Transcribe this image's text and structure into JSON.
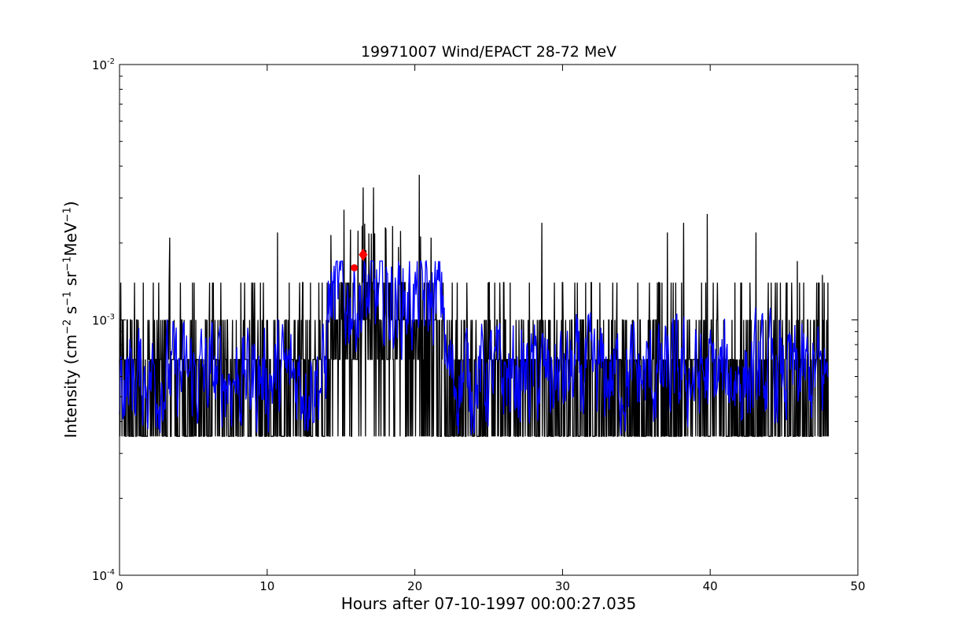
{
  "chart_data": {
    "type": "line",
    "title": "19971007 Wind/EPACT 28-72 MeV",
    "xlabel": "Hours after 07-10-1997 00:00:27.035",
    "ylabel": {
      "prefix": "Intensity (cm",
      "sup1": "−2",
      "mid1": " s",
      "sup2": "−1",
      "mid2": " sr",
      "sup3": "−1",
      "mid3": "MeV",
      "sup4": "−1",
      "suffix": ")"
    },
    "xlim": [
      0,
      50
    ],
    "ylim": [
      0.0001,
      0.01
    ],
    "yscale": "log",
    "x_ticks": [
      0,
      10,
      20,
      30,
      40,
      50
    ],
    "x_tick_labels": [
      "0",
      "10",
      "20",
      "30",
      "40",
      "50"
    ],
    "y_ticks": [
      {
        "value": 0.0001,
        "base": "10",
        "exp": "-4"
      },
      {
        "value": 0.001,
        "base": "10",
        "exp": "-3"
      },
      {
        "value": 0.01,
        "base": "10",
        "exp": "-2"
      }
    ],
    "grid": false,
    "x_range_data": [
      0,
      48
    ],
    "series": [
      {
        "color": "#000000",
        "style": "raw",
        "description_levels": [
          0.00035,
          0.0007,
          0.001,
          0.0014
        ],
        "baseline_level": 0.00035,
        "typical_peak": 0.0015,
        "burst_window": [
          14,
          22
        ],
        "max_spike": {
          "x": 20.3,
          "y": 0.0037
        },
        "spikes": [
          {
            "x": 3.4,
            "y": 0.0021
          },
          {
            "x": 10.7,
            "y": 0.0022
          },
          {
            "x": 15.2,
            "y": 0.0027
          },
          {
            "x": 16.5,
            "y": 0.0033
          },
          {
            "x": 17.2,
            "y": 0.0033
          },
          {
            "x": 18.0,
            "y": 0.0023
          },
          {
            "x": 20.3,
            "y": 0.0037
          },
          {
            "x": 21.1,
            "y": 0.0021
          },
          {
            "x": 28.6,
            "y": 0.0024
          },
          {
            "x": 37.1,
            "y": 0.0022
          },
          {
            "x": 38.2,
            "y": 0.0024
          },
          {
            "x": 39.8,
            "y": 0.0026
          },
          {
            "x": 43.1,
            "y": 0.0022
          },
          {
            "x": 45.9,
            "y": 0.0017
          },
          {
            "x": 47.6,
            "y": 0.0015
          }
        ]
      },
      {
        "color": "#0000ff",
        "style": "smoothed",
        "base_level": 0.0006,
        "burst_level": 0.0012,
        "burst_window": [
          14,
          22
        ],
        "range": [
          0.00035,
          0.0017
        ]
      }
    ],
    "markers": [
      {
        "x": 15.9,
        "y": 0.0016,
        "color": "#ff0000",
        "shape": "circle"
      },
      {
        "x": 16.5,
        "y": 0.0018,
        "color": "#ff0000",
        "shape": "diamond"
      }
    ]
  }
}
